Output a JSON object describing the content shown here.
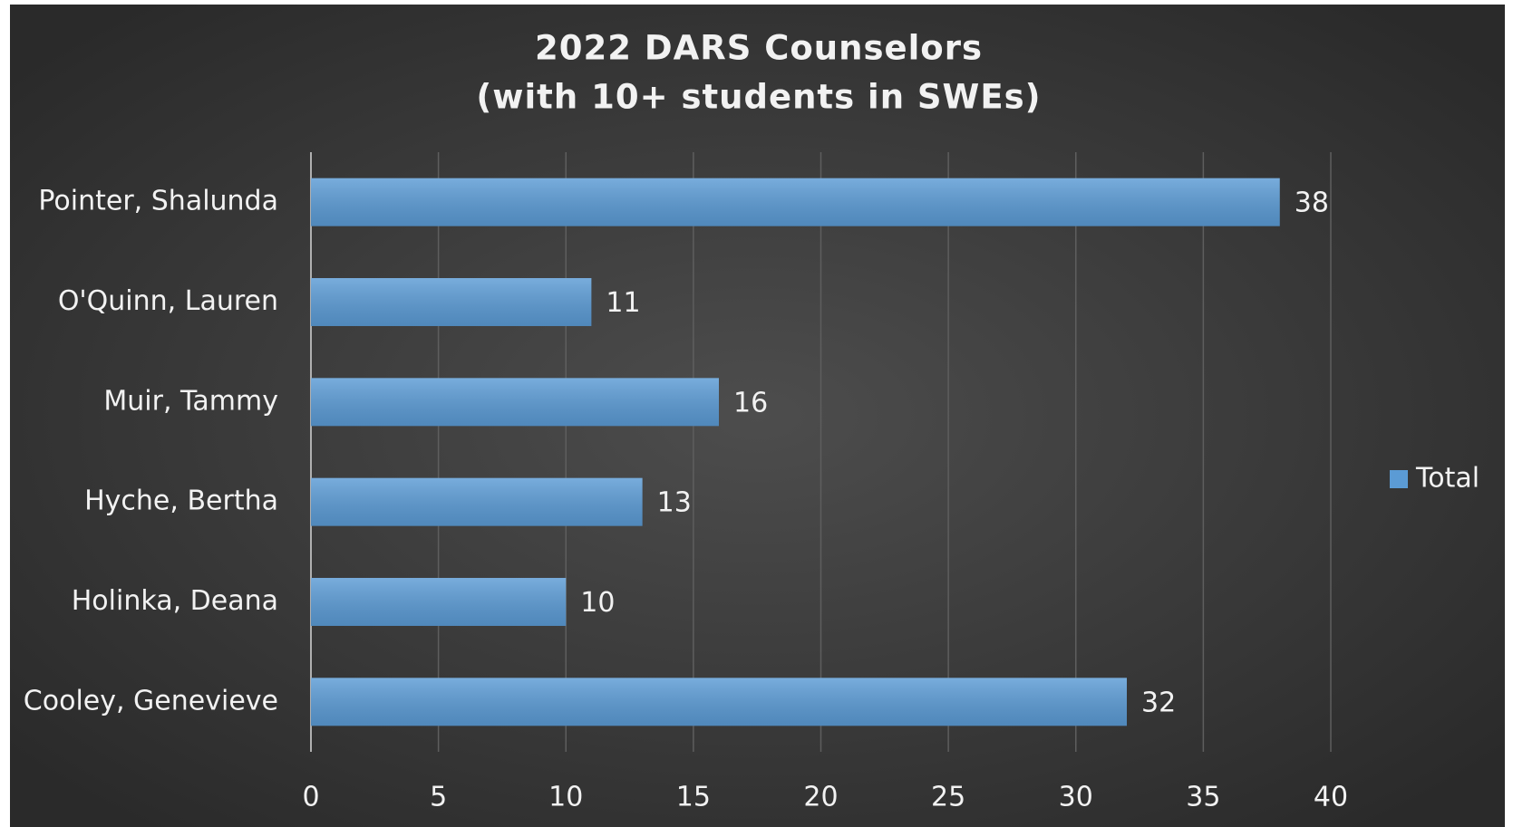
{
  "chart_data": {
    "type": "bar",
    "orientation": "horizontal",
    "title": [
      "2022 DARS Counselors",
      "(with 10+ students in SWEs)"
    ],
    "categories": [
      "Pointer, Shalunda",
      "O'Quinn, Lauren",
      "Muir, Tammy",
      "Hyche, Bertha",
      "Holinka, Deana",
      "Cooley, Genevieve"
    ],
    "series": [
      {
        "name": "Total",
        "color": "#5b9bd5",
        "values": [
          38,
          11,
          16,
          13,
          10,
          32
        ]
      }
    ],
    "xlim": [
      0,
      40
    ],
    "xticks": [
      0,
      5,
      10,
      15,
      20,
      25,
      30,
      35,
      40
    ],
    "grid": true,
    "legend": "right"
  }
}
